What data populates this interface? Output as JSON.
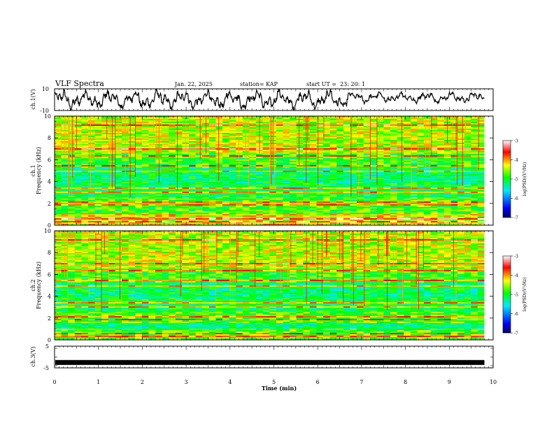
{
  "header": {
    "title": "VLF Spectra",
    "date": "Jan. 22, 2025",
    "station": "station= KAP",
    "start": "start UT =  23: 20: 1"
  },
  "colors": {
    "background": "#ffffff",
    "axis": "#000000",
    "colormap": [
      "#000080",
      "#0000ff",
      "#00ffff",
      "#00ff00",
      "#ffff00",
      "#ff0000",
      "#ffffff"
    ]
  },
  "chart_data": [
    {
      "type": "line",
      "id": "ch1-waveform",
      "ylabel": "ch.1(V)",
      "ylim": [
        -10,
        10
      ],
      "yticks": [
        "10",
        "-10"
      ],
      "xlim": [
        0,
        10
      ],
      "trace": "noisy waveform, oscillating roughly between -9 V and +9 V"
    },
    {
      "type": "heatmap",
      "id": "ch1-spectrogram",
      "ylabel_line1": "ch.1",
      "ylabel_line2": "Frequency (kHz)",
      "ylim": [
        0,
        10
      ],
      "yticks": [
        "0",
        "2",
        "4",
        "6",
        "8",
        "10"
      ],
      "xlim": [
        0,
        10
      ],
      "data_end_min": 9.8,
      "colorbar": {
        "label": "log(PSD)(V²/Hz)",
        "ticks": [
          "-3",
          "-4",
          "-5",
          "-6",
          "-7"
        ],
        "range": [
          -7,
          -3
        ]
      }
    },
    {
      "type": "heatmap",
      "id": "ch2-spectrogram",
      "ylabel_line1": "ch.2",
      "ylabel_line2": "Frequency (kHz)",
      "ylim": [
        0,
        10
      ],
      "yticks": [
        "0",
        "2",
        "4",
        "6",
        "8",
        "10"
      ],
      "xlim": [
        0,
        10
      ],
      "data_end_min": 9.8,
      "colorbar": {
        "label": "log(PSD)(V²/Hz)",
        "ticks": [
          "-3",
          "-4",
          "-5",
          "-6",
          "-7"
        ],
        "range": [
          -7,
          -3
        ]
      }
    },
    {
      "type": "line",
      "id": "ch3-signal",
      "ylabel": "ch.3(V)",
      "ylim": [
        -5,
        5
      ],
      "yticks": [
        "5",
        "-5"
      ],
      "xlim": [
        0,
        10
      ],
      "trace": "flat thick line near -2.5 V"
    }
  ],
  "xaxis": {
    "label": "Time (min)",
    "ticks": [
      "0",
      "1",
      "2",
      "3",
      "4",
      "5",
      "6",
      "7",
      "8",
      "9",
      "10"
    ]
  }
}
